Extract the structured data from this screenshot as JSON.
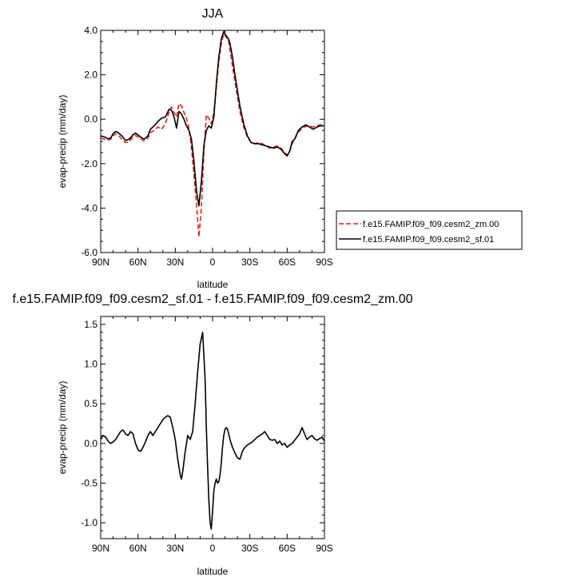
{
  "chart_data": [
    {
      "type": "line",
      "title": "JJA",
      "xlabel": "latitude",
      "ylabel": "evap-precip (mm/day)",
      "xlim": [
        90,
        -90
      ],
      "ylim": [
        -6.0,
        4.0
      ],
      "xticks": [
        90,
        60,
        30,
        0,
        -30,
        -60,
        -90
      ],
      "xtick_labels": [
        "90N",
        "60N",
        "30N",
        "0",
        "30S",
        "60S",
        "90S"
      ],
      "yticks": [
        -6.0,
        -4.0,
        -2.0,
        0.0,
        2.0,
        4.0
      ],
      "ytick_labels": [
        "-6.0",
        "-4.0",
        "-2.0",
        "0.0",
        "2.0",
        "4.0"
      ],
      "legend_position": "right",
      "series": [
        {
          "name": "f.e15.FAMIP.f09_f09.cesm2_zm.00",
          "color": "#e3211c",
          "dash": "dashed",
          "x": [
            90,
            87,
            84,
            82,
            80,
            78,
            76,
            73,
            70,
            67,
            64,
            62,
            58,
            55,
            52,
            50,
            47,
            44,
            41,
            38,
            35,
            33,
            31,
            29,
            27,
            25,
            23,
            21,
            19,
            17,
            15,
            13,
            11,
            9,
            7,
            5,
            3,
            1,
            -1,
            -3,
            -5,
            -7,
            -9,
            -11,
            -13,
            -14,
            -16,
            -18,
            -20,
            -22,
            -25,
            -28,
            -31,
            -34,
            -37,
            -40,
            -43,
            -46,
            -49,
            -52,
            -55,
            -58,
            -60,
            -62,
            -64,
            -66,
            -69,
            -72,
            -75,
            -78,
            -81,
            -84,
            -87,
            -90
          ],
          "y": [
            -0.85,
            -0.9,
            -0.93,
            -0.9,
            -0.75,
            -0.65,
            -0.7,
            -0.9,
            -1.05,
            -1.0,
            -0.8,
            -0.72,
            -0.88,
            -0.98,
            -0.85,
            -0.6,
            -0.5,
            -0.35,
            -0.45,
            -0.2,
            0.35,
            0.55,
            0.3,
            0.1,
            0.7,
            0.6,
            0.3,
            0.05,
            -0.4,
            -1.3,
            -2.5,
            -3.8,
            -5.3,
            -4.0,
            -1.5,
            0.2,
            0.05,
            -0.2,
            0.3,
            1.4,
            2.6,
            3.4,
            3.85,
            3.7,
            3.5,
            3.1,
            2.4,
            1.7,
            1.0,
            0.35,
            -0.35,
            -0.8,
            -1.05,
            -1.1,
            -1.05,
            -1.1,
            -1.2,
            -1.3,
            -1.25,
            -1.2,
            -1.3,
            -1.5,
            -1.62,
            -1.45,
            -1.1,
            -0.9,
            -0.6,
            -0.4,
            -0.32,
            -0.3,
            -0.35,
            -0.28,
            -0.25,
            -0.28
          ]
        },
        {
          "name": "f.e15.FAMIP.f09_f09.cesm2_sf.01",
          "color": "#000000",
          "dash": "solid",
          "x": [
            90,
            87,
            84,
            82,
            80,
            78,
            76,
            73,
            70,
            67,
            64,
            62,
            58,
            55,
            52,
            50,
            47,
            44,
            41,
            38,
            35,
            33,
            31,
            29,
            27,
            25,
            23,
            21,
            19,
            17,
            15,
            13,
            11,
            9,
            7,
            5,
            3,
            1,
            -1,
            -3,
            -5,
            -7,
            -9,
            -11,
            -13,
            -14,
            -16,
            -18,
            -20,
            -22,
            -25,
            -28,
            -31,
            -34,
            -37,
            -40,
            -43,
            -46,
            -49,
            -52,
            -55,
            -58,
            -60,
            -62,
            -64,
            -66,
            -69,
            -72,
            -75,
            -78,
            -81,
            -84,
            -87,
            -90
          ],
          "y": [
            -0.75,
            -0.8,
            -0.88,
            -0.85,
            -0.65,
            -0.55,
            -0.6,
            -0.75,
            -0.95,
            -0.9,
            -0.7,
            -0.62,
            -0.8,
            -0.9,
            -0.75,
            -0.45,
            -0.3,
            -0.1,
            0.05,
            0.1,
            0.45,
            0.4,
            0.1,
            -0.4,
            0.35,
            0.25,
            0.0,
            -0.3,
            -0.5,
            -0.9,
            -1.9,
            -3.2,
            -3.9,
            -2.8,
            -1.2,
            -0.5,
            -0.3,
            -0.4,
            0.1,
            1.6,
            2.8,
            3.6,
            3.95,
            3.75,
            3.6,
            3.4,
            2.8,
            2.0,
            1.3,
            0.6,
            -0.2,
            -0.75,
            -1.05,
            -1.1,
            -1.1,
            -1.15,
            -1.2,
            -1.25,
            -1.3,
            -1.25,
            -1.35,
            -1.55,
            -1.65,
            -1.45,
            -1.0,
            -0.9,
            -0.5,
            -0.35,
            -0.25,
            -0.35,
            -0.45,
            -0.35,
            -0.3,
            -0.3
          ]
        }
      ]
    },
    {
      "type": "line",
      "title": "f.e15.FAMIP.f09_f09.cesm2_sf.01 - f.e15.FAMIP.f09_f09.cesm2_zm.00",
      "xlabel": "latitude",
      "ylabel": "evap-precip (mm/day)",
      "xlim": [
        90,
        -90
      ],
      "ylim": [
        -1.2,
        1.6
      ],
      "xticks": [
        90,
        60,
        30,
        0,
        -30,
        -60,
        -90
      ],
      "xtick_labels": [
        "90N",
        "60N",
        "30N",
        "0",
        "30S",
        "60S",
        "90S"
      ],
      "yticks": [
        -1.0,
        -0.5,
        0.0,
        0.5,
        1.0,
        1.5
      ],
      "ytick_labels": [
        "-1.0",
        "-0.5",
        "0.0",
        "0.5",
        "1.0",
        "1.5"
      ],
      "series": [
        {
          "color": "#000000",
          "dash": "solid",
          "x": [
            90,
            88,
            86,
            84,
            82,
            80,
            78,
            76,
            74,
            72,
            70,
            68,
            66,
            64,
            62,
            60,
            58,
            56,
            54,
            52,
            50,
            48,
            46,
            44,
            42,
            40,
            38,
            36,
            34,
            32,
            30,
            28,
            26,
            25,
            24,
            22,
            20,
            18,
            16,
            14,
            12,
            10,
            8,
            6,
            5,
            4,
            3,
            2,
            1,
            0,
            -1,
            -2,
            -3,
            -4,
            -5,
            -6,
            -7,
            -8,
            -9,
            -10,
            -11,
            -12,
            -13,
            -14,
            -16,
            -18,
            -20,
            -22,
            -24,
            -26,
            -28,
            -30,
            -32,
            -34,
            -36,
            -38,
            -40,
            -42,
            -44,
            -46,
            -48,
            -50,
            -52,
            -54,
            -56,
            -58,
            -60,
            -62,
            -64,
            -66,
            -68,
            -70,
            -72,
            -74,
            -76,
            -78,
            -80,
            -82,
            -84,
            -86,
            -88,
            -90
          ],
          "y": [
            0.05,
            0.1,
            0.08,
            0.03,
            0.0,
            0.02,
            0.05,
            0.1,
            0.15,
            0.17,
            0.12,
            0.1,
            0.15,
            0.12,
            0.0,
            -0.08,
            -0.1,
            -0.05,
            0.02,
            0.1,
            0.15,
            0.1,
            0.15,
            0.2,
            0.25,
            0.3,
            0.33,
            0.35,
            0.33,
            0.2,
            0.05,
            -0.2,
            -0.4,
            -0.45,
            -0.35,
            -0.1,
            0.1,
            0.05,
            0.15,
            0.5,
            0.9,
            1.25,
            1.4,
            0.8,
            0.2,
            -0.3,
            -0.7,
            -1.0,
            -1.08,
            -0.85,
            -0.6,
            -0.5,
            -0.45,
            -0.5,
            -0.48,
            -0.4,
            -0.25,
            -0.05,
            0.1,
            0.18,
            0.2,
            0.18,
            0.12,
            0.05,
            -0.05,
            -0.12,
            -0.18,
            -0.2,
            -0.1,
            -0.05,
            -0.02,
            0.0,
            0.02,
            0.05,
            0.08,
            0.1,
            0.12,
            0.15,
            0.1,
            0.05,
            0.04,
            0.05,
            0.0,
            0.03,
            -0.02,
            0.0,
            -0.05,
            -0.02,
            0.0,
            0.04,
            0.08,
            0.12,
            0.2,
            0.12,
            0.05,
            0.08,
            0.1,
            0.06,
            0.04,
            0.06,
            0.08,
            0.03
          ]
        }
      ]
    }
  ]
}
